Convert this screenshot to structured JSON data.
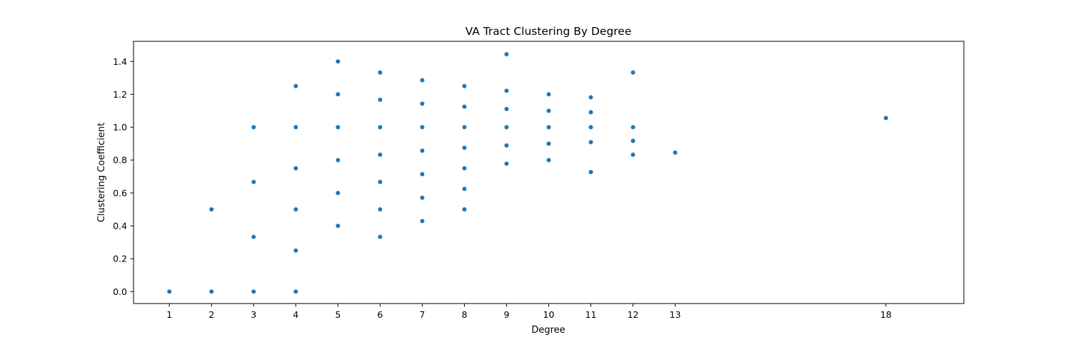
{
  "chart_data": {
    "type": "scatter",
    "title": "VA Tract Clustering By Degree",
    "xlabel": "Degree",
    "ylabel": "Clustering Coefficient",
    "xlim": [
      0.15,
      19.85
    ],
    "ylim": [
      -0.0725,
      1.5225
    ],
    "xticks": [
      1,
      2,
      3,
      4,
      5,
      6,
      7,
      8,
      9,
      10,
      11,
      12,
      13,
      18
    ],
    "yticks": [
      0.0,
      0.2,
      0.4,
      0.6,
      0.8,
      1.0,
      1.2,
      1.4
    ],
    "ytick_labels": [
      "0.0",
      "0.2",
      "0.4",
      "0.6",
      "0.8",
      "1.0",
      "1.2",
      "1.4"
    ],
    "grid": false,
    "legend": "none",
    "marker_color": "#1f77b4",
    "points": [
      [
        1,
        0.0
      ],
      [
        2,
        0.0
      ],
      [
        2,
        0.5
      ],
      [
        3,
        0.0
      ],
      [
        3,
        0.333
      ],
      [
        3,
        0.667
      ],
      [
        3,
        1.0
      ],
      [
        4,
        0.0
      ],
      [
        4,
        0.25
      ],
      [
        4,
        0.5
      ],
      [
        4,
        0.75
      ],
      [
        4,
        1.0
      ],
      [
        4,
        1.25
      ],
      [
        5,
        0.4
      ],
      [
        5,
        0.6
      ],
      [
        5,
        0.8
      ],
      [
        5,
        1.0
      ],
      [
        5,
        1.2
      ],
      [
        5,
        1.4
      ],
      [
        6,
        0.333
      ],
      [
        6,
        0.5
      ],
      [
        6,
        0.667
      ],
      [
        6,
        0.833
      ],
      [
        6,
        1.0
      ],
      [
        6,
        1.167
      ],
      [
        6,
        1.333
      ],
      [
        7,
        0.429
      ],
      [
        7,
        0.571
      ],
      [
        7,
        0.714
      ],
      [
        7,
        0.857
      ],
      [
        7,
        1.0
      ],
      [
        7,
        1.143
      ],
      [
        7,
        1.286
      ],
      [
        8,
        0.5
      ],
      [
        8,
        0.625
      ],
      [
        8,
        0.75
      ],
      [
        8,
        0.875
      ],
      [
        8,
        1.0
      ],
      [
        8,
        1.125
      ],
      [
        8,
        1.25
      ],
      [
        9,
        0.778
      ],
      [
        9,
        0.889
      ],
      [
        9,
        1.0
      ],
      [
        9,
        1.111
      ],
      [
        9,
        1.222
      ],
      [
        9,
        1.444
      ],
      [
        10,
        0.8
      ],
      [
        10,
        0.9
      ],
      [
        10,
        1.0
      ],
      [
        10,
        1.1
      ],
      [
        10,
        1.2
      ],
      [
        11,
        0.727
      ],
      [
        11,
        0.909
      ],
      [
        11,
        1.0
      ],
      [
        11,
        1.091
      ],
      [
        11,
        1.182
      ],
      [
        12,
        0.833
      ],
      [
        12,
        0.917
      ],
      [
        12,
        1.0
      ],
      [
        12,
        1.333
      ],
      [
        13,
        0.846
      ],
      [
        18,
        1.056
      ]
    ]
  }
}
